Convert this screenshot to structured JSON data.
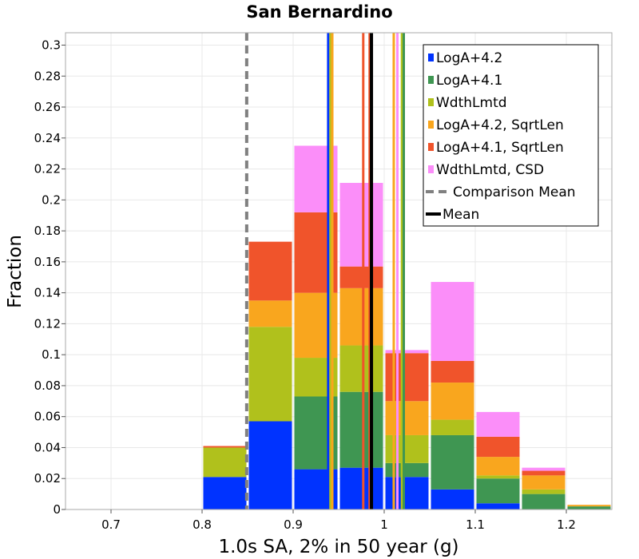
{
  "chart_data": {
    "type": "bar",
    "stacked": true,
    "title": "San Bernardino",
    "xlabel": "1.0s SA, 2% in 50 year (g)",
    "ylabel": "Fraction",
    "xlim": [
      0.65,
      1.25
    ],
    "ylim": [
      0,
      0.308
    ],
    "grid": true,
    "legend_position": "top-right",
    "x_ticks": [
      {
        "value": 0.7,
        "label": "0.7"
      },
      {
        "value": 0.8,
        "label": "0.8"
      },
      {
        "value": 0.9,
        "label": "0.9"
      },
      {
        "value": 1.0,
        "label": "1"
      },
      {
        "value": 1.1,
        "label": "1.1"
      },
      {
        "value": 1.2,
        "label": "1.2"
      }
    ],
    "y_ticks": [
      {
        "value": 0,
        "label": "0"
      },
      {
        "value": 0.02,
        "label": "0.02"
      },
      {
        "value": 0.04,
        "label": "0.04"
      },
      {
        "value": 0.06,
        "label": "0.06"
      },
      {
        "value": 0.08,
        "label": "0.08"
      },
      {
        "value": 0.1,
        "label": "0.1"
      },
      {
        "value": 0.12,
        "label": "0.12"
      },
      {
        "value": 0.14,
        "label": "0.14"
      },
      {
        "value": 0.16,
        "label": "0.16"
      },
      {
        "value": 0.18,
        "label": "0.18"
      },
      {
        "value": 0.2,
        "label": "0.2"
      },
      {
        "value": 0.22,
        "label": "0.22"
      },
      {
        "value": 0.24,
        "label": "0.24"
      },
      {
        "value": 0.26,
        "label": "0.26"
      },
      {
        "value": 0.28,
        "label": "0.28"
      },
      {
        "value": 0.3,
        "label": "0.3"
      }
    ],
    "bin_width": 0.05,
    "bin_centers": [
      0.825,
      0.875,
      0.925,
      0.975,
      1.025,
      1.075,
      1.125,
      1.175,
      1.225
    ],
    "series": [
      {
        "name": "LogA+4.2",
        "color": "#0033ff",
        "values": [
          0.021,
          0.057,
          0.026,
          0.027,
          0.021,
          0.013,
          0.004,
          0.0,
          0.0
        ]
      },
      {
        "name": "LogA+4.1",
        "color": "#3f9652",
        "values": [
          0.0,
          0.0,
          0.047,
          0.049,
          0.009,
          0.035,
          0.016,
          0.01,
          0.002
        ]
      },
      {
        "name": "WdthLmtd",
        "color": "#b0c11c",
        "values": [
          0.019,
          0.061,
          0.025,
          0.03,
          0.018,
          0.01,
          0.002,
          0.003,
          0.0
        ]
      },
      {
        "name": "LogA+4.2, SqrtLen",
        "color": "#f9a61e",
        "values": [
          0.0,
          0.017,
          0.042,
          0.037,
          0.022,
          0.024,
          0.012,
          0.009,
          0.001
        ]
      },
      {
        "name": "LogA+4.1, SqrtLen",
        "color": "#f0542b",
        "values": [
          0.001,
          0.038,
          0.052,
          0.014,
          0.031,
          0.014,
          0.013,
          0.003,
          0.0
        ]
      },
      {
        "name": "WdthLmtd, CSD",
        "color": "#fb8ef9",
        "values": [
          0.0,
          0.0,
          0.043,
          0.054,
          0.002,
          0.051,
          0.016,
          0.002,
          0.0
        ]
      }
    ],
    "vertical_lines": [
      {
        "x": 0.9385,
        "color": "#0033ff",
        "width": 3
      },
      {
        "x": 0.941,
        "color": "#b0c11c",
        "width": 3
      },
      {
        "x": 0.943,
        "color": "#f9a61e",
        "width": 3
      },
      {
        "x": 0.977,
        "color": "#f0542b",
        "width": 3
      },
      {
        "x": 0.984,
        "color": "#f0542b",
        "width": 3
      },
      {
        "x": 1.0105,
        "color": "#f9a61e",
        "width": 3
      },
      {
        "x": 1.0145,
        "color": "#fb8ef9",
        "width": 3
      },
      {
        "x": 1.0195,
        "color": "#b0c11c",
        "width": 3
      },
      {
        "x": 1.0215,
        "color": "#3f9652",
        "width": 3
      }
    ],
    "comparison_mean": {
      "name": "Comparison Mean",
      "x": 0.849,
      "color": "#808080"
    },
    "mean": {
      "name": "Mean",
      "x": 0.986,
      "color": "#000000"
    }
  }
}
